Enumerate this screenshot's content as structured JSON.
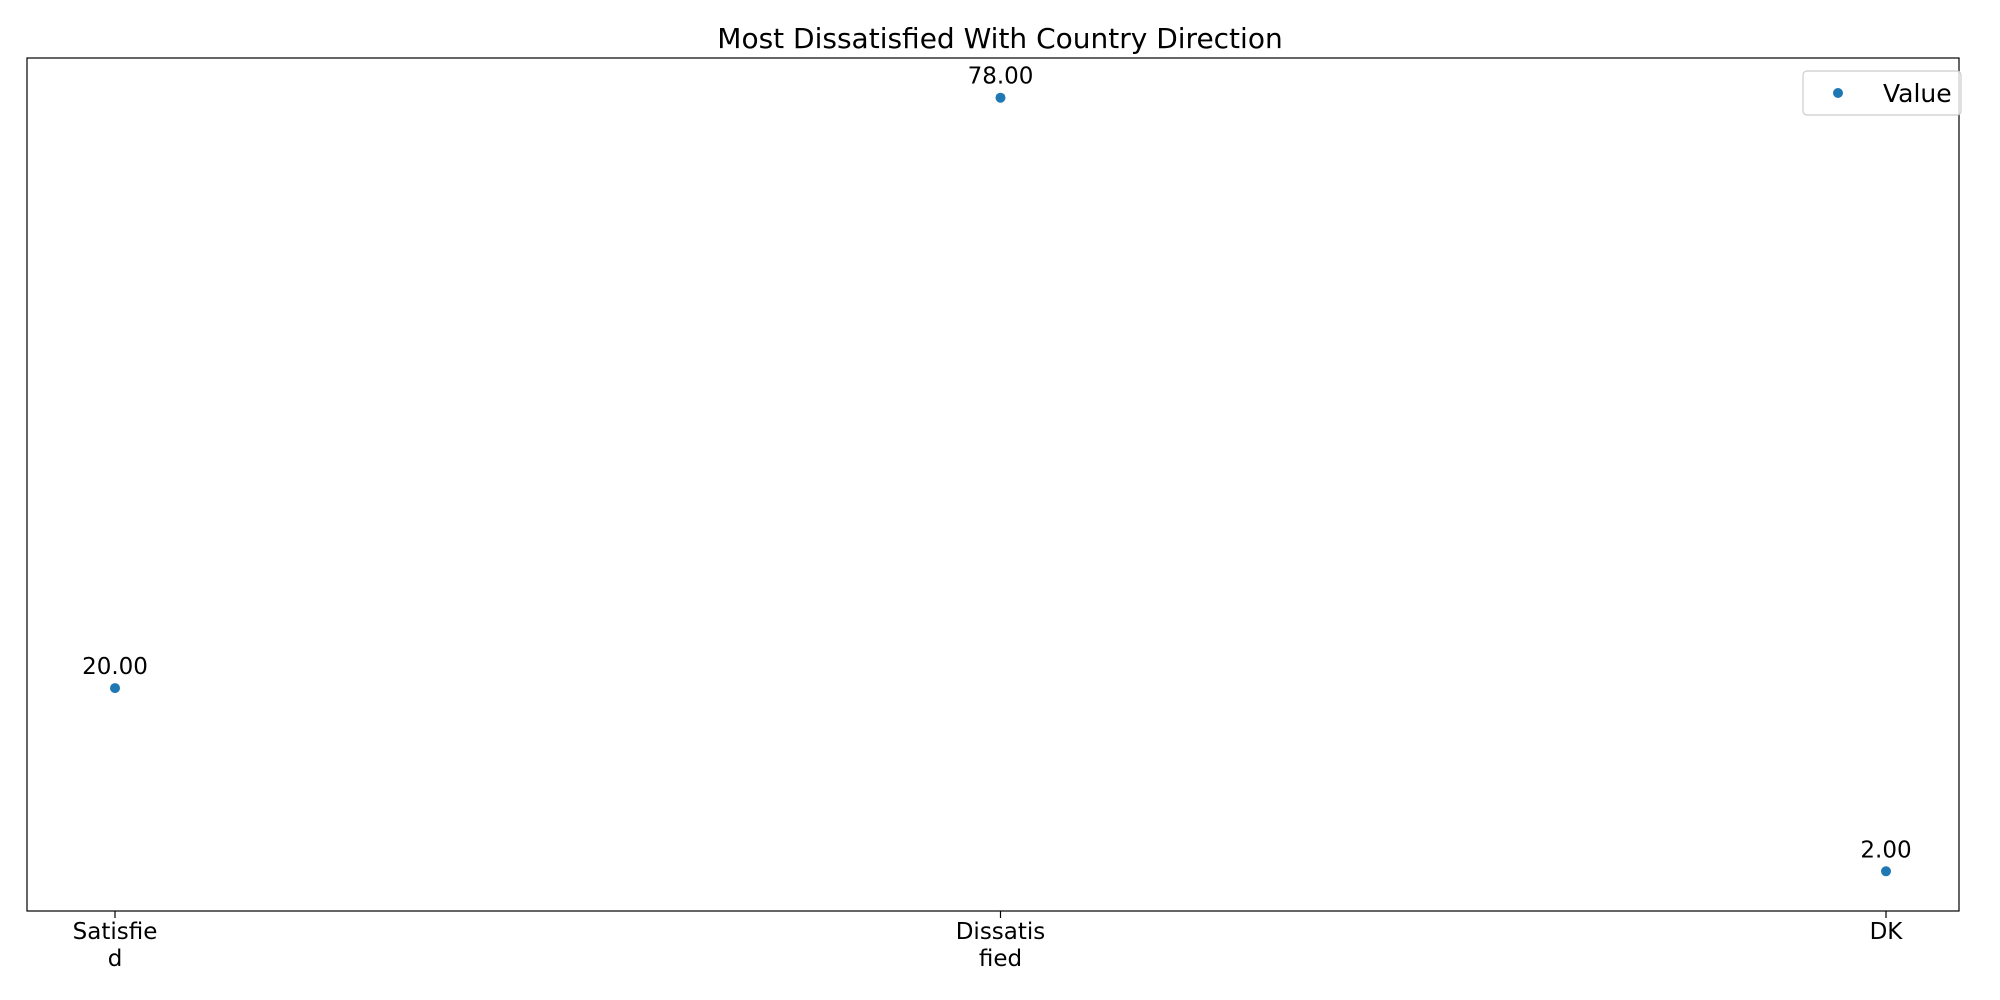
{
  "chart_data": {
    "type": "scatter",
    "title": "Most Dissatisfied With Country Direction",
    "xlabel": "",
    "ylabel": "",
    "categories": [
      "Satisfied",
      "Dissatisfied",
      "DK"
    ],
    "tick_labels": [
      [
        "Satisfie",
        "d"
      ],
      [
        "Dissatis",
        "fied"
      ],
      [
        "DK"
      ]
    ],
    "series": [
      {
        "name": "Value",
        "values": [
          20,
          78,
          2
        ],
        "data_labels": [
          "20.00",
          "78.00",
          "2.00"
        ],
        "color": "#1f77b4"
      }
    ],
    "ylim": [
      -1.9,
      81.9
    ],
    "y_ticks_shown": false,
    "grid": false,
    "legend": "top-right"
  }
}
